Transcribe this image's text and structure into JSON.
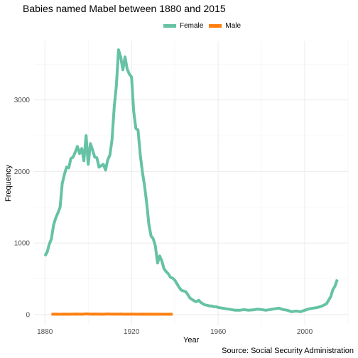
{
  "chart_data": {
    "type": "line",
    "title": "Babies named Mabel between 1880 and 2015",
    "xlabel": "Year",
    "ylabel": "Frequency",
    "caption": "Source: Social Security Administration",
    "xlim": [
      1875,
      2020
    ],
    "ylim": [
      -150,
      3820
    ],
    "x_ticks": [
      1880,
      1920,
      1960,
      2000
    ],
    "y_ticks": [
      0,
      1000,
      2000,
      3000
    ],
    "grid": true,
    "legend_position": "top",
    "series": [
      {
        "name": "Female",
        "color": "#66c2a5",
        "x": [
          1880,
          1881,
          1882,
          1883,
          1884,
          1885,
          1886,
          1887,
          1888,
          1889,
          1890,
          1891,
          1892,
          1893,
          1894,
          1895,
          1896,
          1897,
          1898,
          1899,
          1900,
          1901,
          1902,
          1903,
          1904,
          1905,
          1906,
          1907,
          1908,
          1909,
          1910,
          1911,
          1912,
          1913,
          1914,
          1915,
          1916,
          1917,
          1918,
          1919,
          1920,
          1921,
          1922,
          1923,
          1924,
          1925,
          1926,
          1927,
          1928,
          1929,
          1930,
          1931,
          1932,
          1933,
          1934,
          1935,
          1936,
          1937,
          1938,
          1939,
          1940,
          1941,
          1942,
          1943,
          1944,
          1945,
          1946,
          1947,
          1948,
          1949,
          1950,
          1951,
          1952,
          1953,
          1954,
          1955,
          1956,
          1957,
          1958,
          1959,
          1960,
          1962,
          1964,
          1966,
          1968,
          1970,
          1972,
          1974,
          1976,
          1978,
          1980,
          1982,
          1984,
          1986,
          1988,
          1990,
          1992,
          1994,
          1996,
          1998,
          2000,
          2002,
          2004,
          2006,
          2008,
          2010,
          2011,
          2012,
          2013,
          2014,
          2015
        ],
        "values": [
          820,
          870,
          980,
          1060,
          1250,
          1350,
          1420,
          1500,
          1830,
          1960,
          2060,
          2050,
          2180,
          2200,
          2270,
          2350,
          2250,
          2320,
          2150,
          2500,
          2100,
          2390,
          2300,
          2200,
          2190,
          2060,
          2080,
          2100,
          2020,
          2160,
          2230,
          2440,
          2900,
          3200,
          3700,
          3600,
          3420,
          3600,
          3430,
          3360,
          3320,
          2840,
          2600,
          2580,
          2240,
          2000,
          1800,
          1560,
          1260,
          1100,
          1060,
          960,
          720,
          820,
          750,
          640,
          600,
          570,
          520,
          510,
          480,
          430,
          380,
          340,
          330,
          320,
          280,
          230,
          210,
          190,
          180,
          200,
          170,
          150,
          135,
          130,
          120,
          120,
          110,
          110,
          100,
          90,
          80,
          70,
          60,
          60,
          70,
          60,
          65,
          75,
          70,
          60,
          70,
          80,
          90,
          70,
          60,
          40,
          50,
          40,
          60,
          80,
          90,
          100,
          120,
          150,
          200,
          250,
          350,
          400,
          490
        ]
      },
      {
        "name": "Male",
        "color": "#ff7f0e",
        "x": [
          1883,
          1885,
          1887,
          1889,
          1891,
          1893,
          1895,
          1897,
          1899,
          1901,
          1903,
          1905,
          1907,
          1909,
          1911,
          1913,
          1915,
          1917,
          1919,
          1921,
          1923,
          1925,
          1927,
          1929,
          1931,
          1933,
          1935,
          1937,
          1939
        ],
        "values": [
          5,
          6,
          5,
          7,
          5,
          6,
          8,
          5,
          10,
          6,
          8,
          6,
          5,
          9,
          7,
          6,
          8,
          5,
          7,
          6,
          5,
          6,
          5,
          6,
          5,
          5,
          5,
          5,
          5
        ]
      }
    ]
  }
}
